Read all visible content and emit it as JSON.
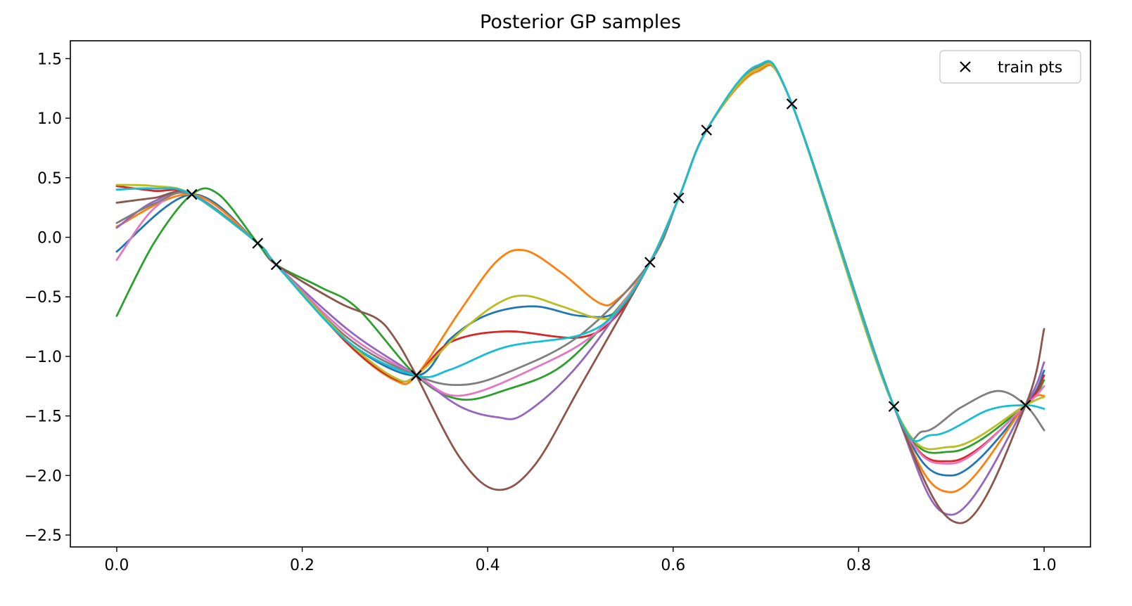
{
  "chart_data": {
    "type": "line",
    "title": "Posterior GP samples",
    "xlabel": "",
    "ylabel": "",
    "xlim": [
      -0.05,
      1.05
    ],
    "ylim": [
      -2.6,
      1.65
    ],
    "xticks": [
      0.0,
      0.2,
      0.4,
      0.6,
      0.8,
      1.0
    ],
    "xtick_labels": [
      "0.0",
      "0.2",
      "0.4",
      "0.6",
      "0.8",
      "1.0"
    ],
    "yticks": [
      -2.5,
      -2.0,
      -1.5,
      -1.0,
      -0.5,
      0.0,
      0.5,
      1.0,
      1.5
    ],
    "ytick_labels": [
      "−2.5",
      "−2.0",
      "−1.5",
      "−1.0",
      "−0.5",
      "0.0",
      "0.5",
      "1.0",
      "1.5"
    ],
    "grid": false,
    "legend": {
      "placement": "top-right",
      "entries": [
        "train pts"
      ]
    },
    "train_points": {
      "name": "train pts",
      "marker": "x",
      "color": "#000000",
      "x": [
        0.081,
        0.152,
        0.172,
        0.323,
        0.575,
        0.606,
        0.636,
        0.728,
        0.838,
        0.98
      ],
      "y": [
        0.36,
        -0.05,
        -0.23,
        -1.16,
        -0.21,
        0.33,
        0.9,
        1.12,
        -1.42,
        -1.41
      ]
    },
    "series": [
      {
        "color": "#1f77b4",
        "x": [
          0,
          0.081,
          0.152,
          0.172,
          0.25,
          0.323,
          0.36,
          0.4,
          0.45,
          0.5,
          0.54,
          0.575,
          0.606,
          0.636,
          0.69,
          0.728,
          0.838,
          0.9,
          0.98,
          1.0
        ],
        "y": [
          -0.12,
          0.36,
          -0.05,
          -0.23,
          -0.88,
          -1.16,
          -0.85,
          -0.65,
          -0.58,
          -0.66,
          -0.62,
          -0.21,
          0.33,
          0.9,
          1.41,
          1.12,
          -1.42,
          -2.0,
          -1.41,
          -1.12
        ]
      },
      {
        "color": "#ff7f0e",
        "x": [
          0,
          0.081,
          0.152,
          0.172,
          0.25,
          0.3,
          0.323,
          0.37,
          0.41,
          0.44,
          0.48,
          0.52,
          0.54,
          0.575,
          0.606,
          0.636,
          0.69,
          0.728,
          0.838,
          0.9,
          0.98,
          1.0
        ],
        "y": [
          0.09,
          0.36,
          -0.05,
          -0.23,
          -0.9,
          -1.2,
          -1.16,
          -0.62,
          -0.2,
          -0.11,
          -0.3,
          -0.55,
          -0.52,
          -0.21,
          0.33,
          0.9,
          1.39,
          1.12,
          -1.42,
          -2.14,
          -1.41,
          -1.33
        ]
      },
      {
        "color": "#2ca02c",
        "x": [
          0,
          0.04,
          0.081,
          0.11,
          0.152,
          0.172,
          0.22,
          0.26,
          0.323,
          0.37,
          0.42,
          0.48,
          0.54,
          0.575,
          0.606,
          0.636,
          0.69,
          0.728,
          0.838,
          0.9,
          0.98,
          1.0
        ],
        "y": [
          -0.66,
          -0.05,
          0.36,
          0.36,
          -0.05,
          -0.23,
          -0.42,
          -0.6,
          -1.16,
          -1.36,
          -1.28,
          -1.08,
          -0.6,
          -0.21,
          0.33,
          0.9,
          1.43,
          1.12,
          -1.42,
          -1.8,
          -1.41,
          -1.2
        ]
      },
      {
        "color": "#d62728",
        "x": [
          0,
          0.04,
          0.081,
          0.152,
          0.172,
          0.25,
          0.3,
          0.323,
          0.36,
          0.42,
          0.5,
          0.54,
          0.575,
          0.606,
          0.636,
          0.69,
          0.728,
          0.838,
          0.9,
          0.98,
          1.0
        ],
        "y": [
          0.43,
          0.39,
          0.36,
          -0.05,
          -0.23,
          -0.9,
          -1.19,
          -1.16,
          -0.88,
          -0.79,
          -0.84,
          -0.65,
          -0.21,
          0.33,
          0.9,
          1.42,
          1.12,
          -1.42,
          -1.88,
          -1.41,
          -1.16
        ]
      },
      {
        "color": "#9467bd",
        "x": [
          0,
          0.04,
          0.081,
          0.152,
          0.172,
          0.25,
          0.323,
          0.37,
          0.41,
          0.44,
          0.5,
          0.575,
          0.606,
          0.636,
          0.69,
          0.728,
          0.838,
          0.9,
          0.98,
          1.0
        ],
        "y": [
          0.08,
          0.3,
          0.36,
          -0.05,
          -0.23,
          -0.78,
          -1.16,
          -1.42,
          -1.51,
          -1.48,
          -1.05,
          -0.21,
          0.33,
          0.9,
          1.42,
          1.12,
          -1.42,
          -2.33,
          -1.41,
          -1.05
        ]
      },
      {
        "color": "#8c564b",
        "x": [
          0,
          0.04,
          0.081,
          0.152,
          0.172,
          0.24,
          0.28,
          0.3,
          0.323,
          0.37,
          0.41,
          0.45,
          0.5,
          0.575,
          0.606,
          0.636,
          0.69,
          0.728,
          0.838,
          0.91,
          0.98,
          1.0
        ],
        "y": [
          0.29,
          0.33,
          0.36,
          -0.05,
          -0.23,
          -0.55,
          -0.68,
          -0.85,
          -1.16,
          -1.85,
          -2.12,
          -1.92,
          -1.25,
          -0.21,
          0.33,
          0.9,
          1.42,
          1.12,
          -1.42,
          -2.4,
          -1.41,
          -0.77
        ]
      },
      {
        "color": "#e377c2",
        "x": [
          0,
          0.04,
          0.081,
          0.152,
          0.172,
          0.25,
          0.323,
          0.37,
          0.45,
          0.52,
          0.575,
          0.606,
          0.636,
          0.69,
          0.728,
          0.838,
          0.9,
          0.98,
          1.0
        ],
        "y": [
          -0.19,
          0.24,
          0.36,
          -0.05,
          -0.23,
          -0.82,
          -1.16,
          -1.33,
          -1.1,
          -0.78,
          -0.21,
          0.33,
          0.9,
          1.42,
          1.12,
          -1.42,
          -1.9,
          -1.41,
          -1.25
        ]
      },
      {
        "color": "#7f7f7f",
        "x": [
          0,
          0.04,
          0.081,
          0.152,
          0.172,
          0.25,
          0.323,
          0.37,
          0.42,
          0.5,
          0.575,
          0.606,
          0.636,
          0.69,
          0.728,
          0.838,
          0.87,
          0.91,
          0.95,
          0.98,
          1.0
        ],
        "y": [
          0.12,
          0.28,
          0.36,
          -0.05,
          -0.23,
          -0.85,
          -1.16,
          -1.24,
          -1.14,
          -0.82,
          -0.21,
          0.33,
          0.9,
          1.42,
          1.12,
          -1.42,
          -1.63,
          -1.43,
          -1.29,
          -1.41,
          -1.62
        ]
      },
      {
        "color": "#bcbd22",
        "x": [
          0,
          0.04,
          0.081,
          0.152,
          0.172,
          0.25,
          0.3,
          0.323,
          0.37,
          0.41,
          0.44,
          0.48,
          0.52,
          0.54,
          0.575,
          0.606,
          0.636,
          0.69,
          0.728,
          0.838,
          0.9,
          0.98,
          1.0
        ],
        "y": [
          0.44,
          0.43,
          0.36,
          -0.05,
          -0.23,
          -0.88,
          -1.18,
          -1.16,
          -0.8,
          -0.56,
          -0.49,
          -0.58,
          -0.68,
          -0.62,
          -0.21,
          0.33,
          0.9,
          1.41,
          1.12,
          -1.42,
          -1.76,
          -1.41,
          -1.34
        ]
      },
      {
        "color": "#17becf",
        "x": [
          0,
          0.04,
          0.081,
          0.152,
          0.172,
          0.25,
          0.323,
          0.36,
          0.42,
          0.5,
          0.54,
          0.575,
          0.606,
          0.636,
          0.69,
          0.728,
          0.838,
          0.88,
          0.94,
          0.98,
          1.0
        ],
        "y": [
          0.4,
          0.41,
          0.36,
          -0.05,
          -0.23,
          -0.88,
          -1.16,
          -1.11,
          -0.92,
          -0.82,
          -0.62,
          -0.21,
          0.33,
          0.9,
          1.44,
          1.12,
          -1.42,
          -1.66,
          -1.45,
          -1.41,
          -1.44
        ]
      }
    ]
  }
}
